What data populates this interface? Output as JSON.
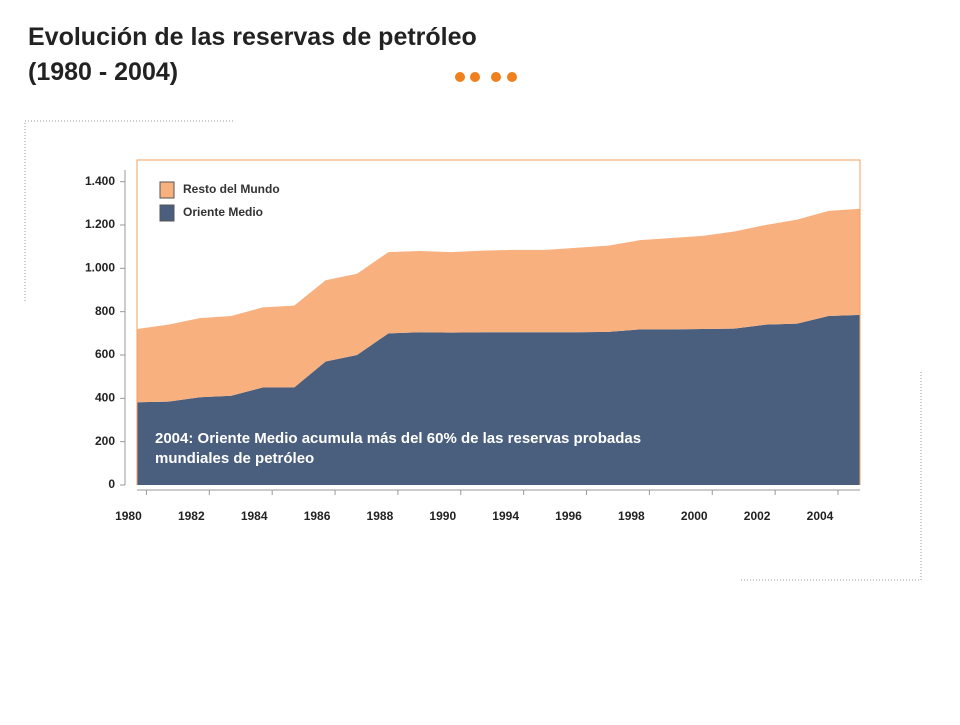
{
  "chart_data": {
    "type": "stacked_area",
    "title": "Evolución de las reservas de petróleo",
    "subtitle": "(1980 - 2004)",
    "annotation": [
      "2004: Oriente Medio acumula más del 60% de las reservas probadas",
      "mundiales de petróleo"
    ],
    "categories": [
      null,
      "1980",
      null,
      "1982",
      null,
      "1984",
      null,
      "1986",
      null,
      "1988",
      null,
      "1990",
      null,
      "1994",
      null,
      "1996",
      null,
      "1998",
      null,
      "2000",
      null,
      "2002",
      null,
      "2004"
    ],
    "series": [
      {
        "name": "Oriente Medio",
        "color": "#4a5f7e",
        "values": [
          382,
          385,
          405,
          412,
          450,
          450,
          570,
          600,
          700,
          705,
          703,
          705,
          705,
          705,
          705,
          707,
          718,
          718,
          720,
          722,
          740,
          745,
          780,
          785
        ]
      },
      {
        "name": "Resto del Mundo",
        "color": "#f9b07f",
        "values": [
          338,
          355,
          365,
          368,
          370,
          378,
          375,
          375,
          375,
          375,
          372,
          377,
          380,
          380,
          390,
          398,
          412,
          422,
          430,
          448,
          460,
          480,
          485,
          490
        ]
      }
    ],
    "ylim": [
      0,
      1500
    ],
    "yticks": [
      0,
      200,
      400,
      600,
      800,
      {
        "value": 1000,
        "label": "1.000"
      },
      {
        "value": 1200,
        "label": "1.200"
      },
      {
        "value": 1400,
        "label": "1.400"
      }
    ],
    "legend": "top-left"
  }
}
